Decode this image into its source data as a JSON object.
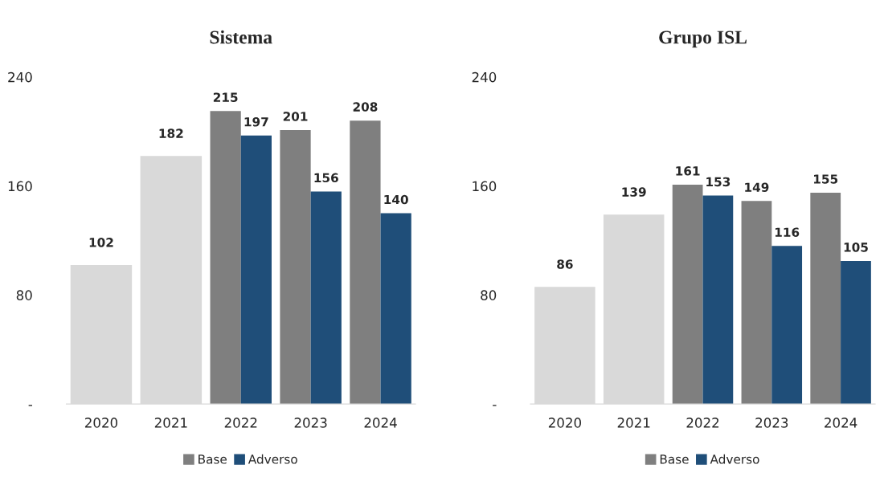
{
  "chart_data": [
    {
      "type": "bar",
      "title": "Sistema",
      "categories": [
        "2020",
        "2021",
        "2022",
        "2023",
        "2024"
      ],
      "series": [
        {
          "color": "#d9d9d9",
          "values": [
            102,
            182,
            null,
            null,
            null
          ]
        },
        {
          "name": "Base",
          "color": "#7f7f7f",
          "values": [
            null,
            null,
            215,
            201,
            208
          ]
        },
        {
          "name": "Adverso",
          "color": "#1f4e79",
          "values": [
            null,
            null,
            197,
            156,
            140
          ]
        }
      ],
      "ylim": [
        0,
        240
      ],
      "yticks": [
        {
          "value": 0,
          "label": "-"
        },
        80,
        160,
        240
      ],
      "data_labels": true,
      "grid": false,
      "legend": "bottom"
    },
    {
      "type": "bar",
      "title": "Grupo ISL",
      "categories": [
        "2020",
        "2021",
        "2022",
        "2023",
        "2024"
      ],
      "series": [
        {
          "color": "#d9d9d9",
          "values": [
            86,
            139,
            null,
            null,
            null
          ]
        },
        {
          "name": "Base",
          "color": "#7f7f7f",
          "values": [
            null,
            null,
            161,
            149,
            155
          ]
        },
        {
          "name": "Adverso",
          "color": "#1f4e79",
          "values": [
            null,
            null,
            153,
            116,
            105
          ]
        }
      ],
      "ylim": [
        0,
        240
      ],
      "yticks": [
        {
          "value": 0,
          "label": "-"
        },
        80,
        160,
        240
      ],
      "data_labels": true,
      "grid": false,
      "legend": "bottom"
    }
  ]
}
